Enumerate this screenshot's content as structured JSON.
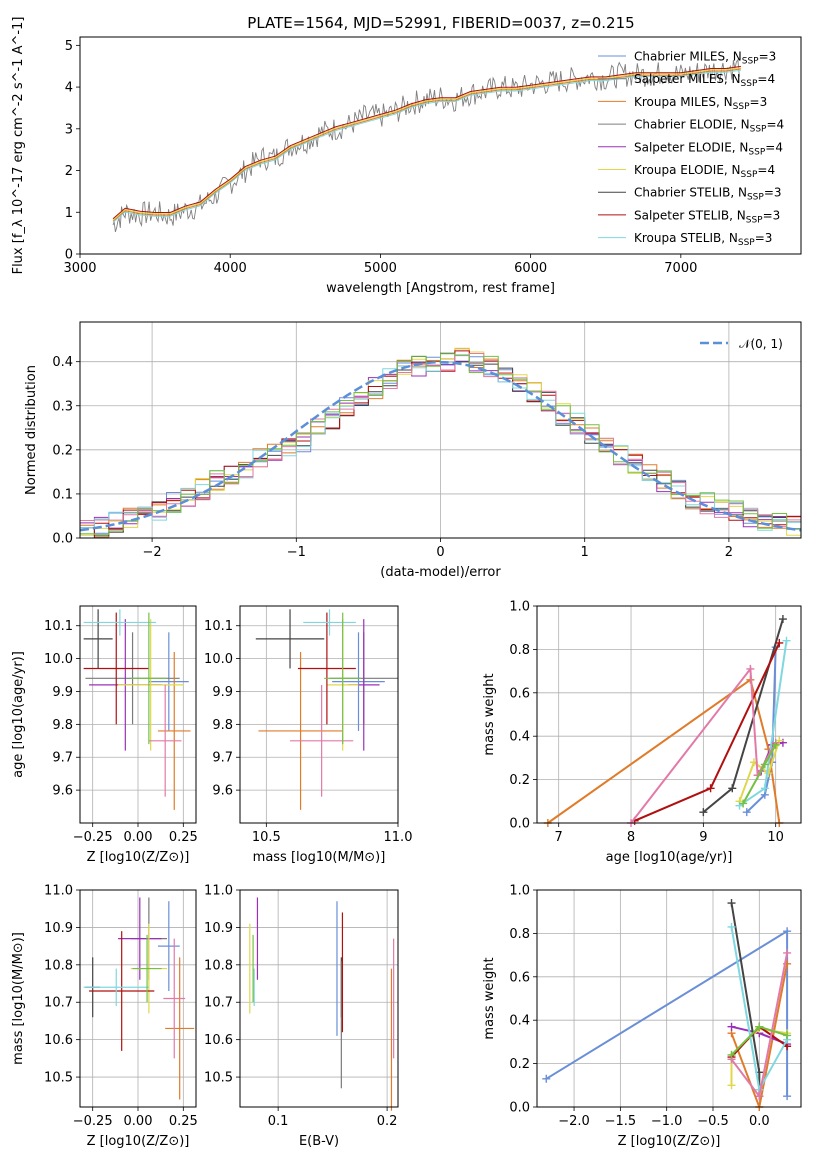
{
  "figure_title": "PLATE=1564, MJD=52991, FIBERID=0037, z=0.215",
  "legend": {
    "entries": [
      {
        "label": "Chabrier MILES, N",
        "sub": "SSP",
        "suffix": "=3",
        "color": "#6a8fd8"
      },
      {
        "label": "Salpeter MILES, N",
        "sub": "SSP",
        "suffix": "=4",
        "color": "#7a7a7a"
      },
      {
        "label": "Kroupa MILES, N",
        "sub": "SSP",
        "suffix": "=3",
        "color": "#e07b2a"
      },
      {
        "label": "Chabrier ELODIE, N",
        "sub": "SSP",
        "suffix": "=4",
        "color": "#7f7f7f"
      },
      {
        "label": "Salpeter ELODIE, N",
        "sub": "SSP",
        "suffix": "=4",
        "color": "#9b30b8"
      },
      {
        "label": "Kroupa ELODIE, N",
        "sub": "SSP",
        "suffix": "=4",
        "color": "#e0d84a"
      },
      {
        "label": "Chabrier STELIB, N",
        "sub": "SSP",
        "suffix": "=3",
        "color": "#444444"
      },
      {
        "label": "Salpeter STELIB, N",
        "sub": "SSP",
        "suffix": "=3",
        "color": "#b01010"
      },
      {
        "label": "Kroupa STELIB, N",
        "sub": "SSP",
        "suffix": "=3",
        "color": "#7fd8e0"
      }
    ],
    "gauss_label": "𝒩(0, 1)"
  },
  "chart_data": [
    {
      "id": "spectrum",
      "type": "line",
      "xlabel": "wavelength [Angstrom, rest frame]",
      "ylabel": "Flux [f_λ 10^-17 erg cm^-2 s^-1 A^-1]",
      "xlim": [
        3000,
        7800
      ],
      "ylim": [
        0,
        5.2
      ],
      "xticks": [
        3000,
        4000,
        5000,
        6000,
        7000
      ],
      "yticks": [
        0,
        1,
        2,
        3,
        4,
        5
      ],
      "data_x": [
        3220,
        3300,
        3400,
        3500,
        3600,
        3700,
        3800,
        3900,
        4000,
        4100,
        4200,
        4300,
        4400,
        4500,
        4600,
        4700,
        4800,
        4900,
        5000,
        5100,
        5200,
        5300,
        5400,
        5500,
        5600,
        5700,
        5800,
        5900,
        6000,
        6100,
        6200,
        6300,
        6400,
        6500,
        6600,
        6700,
        6800,
        6900,
        7000,
        7100,
        7200,
        7300,
        7400
      ],
      "data_y": [
        0.7,
        1.0,
        0.95,
        1.0,
        0.9,
        1.05,
        1.15,
        1.4,
        1.7,
        2.0,
        2.3,
        2.3,
        2.6,
        2.7,
        2.9,
        3.0,
        3.1,
        3.3,
        3.3,
        3.4,
        3.6,
        3.7,
        3.75,
        3.7,
        3.85,
        3.9,
        4.0,
        3.95,
        4.05,
        4.1,
        4.15,
        4.2,
        4.25,
        4.2,
        4.3,
        4.3,
        4.3,
        4.35,
        4.3,
        4.35,
        4.4,
        4.45,
        4.5
      ],
      "model_x": [
        3220,
        3300,
        3400,
        3500,
        3600,
        3700,
        3800,
        3900,
        4000,
        4100,
        4200,
        4300,
        4400,
        4500,
        4600,
        4700,
        4800,
        4900,
        5000,
        5100,
        5200,
        5300,
        5400,
        5500,
        5600,
        5700,
        5800,
        5900,
        6000,
        6100,
        6200,
        6300,
        6400,
        6500,
        6600,
        6700,
        6800,
        6900,
        7000,
        7100,
        7200,
        7300,
        7400
      ],
      "model_y": [
        0.8,
        1.05,
        0.98,
        0.95,
        0.95,
        1.1,
        1.2,
        1.5,
        1.75,
        2.05,
        2.2,
        2.3,
        2.55,
        2.7,
        2.85,
        3.0,
        3.1,
        3.2,
        3.3,
        3.4,
        3.55,
        3.65,
        3.7,
        3.7,
        3.85,
        3.9,
        3.95,
        3.95,
        4.0,
        4.05,
        4.1,
        4.15,
        4.2,
        4.2,
        4.25,
        4.3,
        4.3,
        4.3,
        4.3,
        4.35,
        4.4,
        4.4,
        4.45
      ]
    },
    {
      "id": "residual_hist",
      "type": "step",
      "xlabel": "(data-model)/error",
      "ylabel": "Normed distribution",
      "xlim": [
        -2.5,
        2.5
      ],
      "ylim": [
        0,
        0.49
      ],
      "xticks": [
        -2,
        -1,
        0,
        1,
        2
      ],
      "yticks": [
        0.0,
        0.1,
        0.2,
        0.3,
        0.4
      ],
      "bin_edges": [
        -2.5,
        -2.4,
        -2.3,
        -2.2,
        -2.1,
        -2.0,
        -1.9,
        -1.8,
        -1.7,
        -1.6,
        -1.5,
        -1.4,
        -1.3,
        -1.2,
        -1.1,
        -1.0,
        -0.9,
        -0.8,
        -0.7,
        -0.6,
        -0.5,
        -0.4,
        -0.3,
        -0.2,
        -0.1,
        0.0,
        0.1,
        0.2,
        0.3,
        0.4,
        0.5,
        0.6,
        0.7,
        0.8,
        0.9,
        1.0,
        1.1,
        1.2,
        1.3,
        1.4,
        1.5,
        1.6,
        1.7,
        1.8,
        1.9,
        2.0,
        2.1,
        2.2,
        2.3,
        2.4,
        2.5
      ],
      "counts": [
        0.015,
        0.025,
        0.035,
        0.045,
        0.05,
        0.06,
        0.08,
        0.09,
        0.11,
        0.13,
        0.14,
        0.15,
        0.18,
        0.19,
        0.21,
        0.22,
        0.25,
        0.27,
        0.3,
        0.32,
        0.34,
        0.36,
        0.38,
        0.39,
        0.395,
        0.4,
        0.41,
        0.4,
        0.39,
        0.37,
        0.35,
        0.33,
        0.31,
        0.28,
        0.26,
        0.24,
        0.22,
        0.19,
        0.17,
        0.15,
        0.13,
        0.11,
        0.09,
        0.08,
        0.07,
        0.06,
        0.05,
        0.04,
        0.035,
        0.03
      ],
      "gauss": {
        "mu": 0,
        "sigma": 1
      }
    },
    {
      "id": "age_vs_Z",
      "type": "errorbar",
      "xlabel": "Z [log10(Z/Z⊙)]",
      "ylabel": "age [log10(age/yr)]",
      "xlim": [
        -0.32,
        0.32
      ],
      "ylim": [
        9.5,
        10.16
      ],
      "xticks": [
        -0.25,
        0.0,
        0.25
      ],
      "xticklabels": [
        "−0.25",
        "0.00",
        "0.25"
      ],
      "yticks": [
        9.6,
        9.7,
        9.8,
        9.9,
        10.0,
        10.1
      ],
      "points": [
        {
          "x": 0.17,
          "y": 9.93,
          "xerr": 0.11,
          "yerr": 0.15,
          "color": "#6a8fd8"
        },
        {
          "x": -0.03,
          "y": 9.94,
          "xerr": 0.26,
          "yerr": 0.14,
          "color": "#7a7a7a"
        },
        {
          "x": 0.2,
          "y": 9.78,
          "xerr": 0.09,
          "yerr": 0.24,
          "color": "#e07b2a"
        },
        {
          "x": -0.07,
          "y": 9.92,
          "xerr": 0.2,
          "yerr": 0.2,
          "color": "#9b30b8"
        },
        {
          "x": 0.07,
          "y": 9.92,
          "xerr": 0.18,
          "yerr": 0.2,
          "color": "#e0d84a"
        },
        {
          "x": -0.22,
          "y": 10.06,
          "xerr": 0.08,
          "yerr": 0.09,
          "color": "#444444"
        },
        {
          "x": -0.12,
          "y": 9.97,
          "xerr": 0.18,
          "yerr": 0.17,
          "color": "#b01010"
        },
        {
          "x": -0.1,
          "y": 10.11,
          "xerr": 0.2,
          "yerr": 0.04,
          "color": "#7fd8e0"
        },
        {
          "x": 0.15,
          "y": 9.75,
          "xerr": 0.09,
          "yerr": 0.17,
          "color": "#e27aa8"
        },
        {
          "x": 0.06,
          "y": 9.94,
          "xerr": 0.1,
          "yerr": 0.2,
          "color": "#74c043"
        }
      ]
    },
    {
      "id": "age_vs_mass",
      "type": "errorbar",
      "xlabel": "mass [log10(M/M⊙)]",
      "ylabel": "",
      "xlim": [
        10.4,
        11.0
      ],
      "ylim": [
        9.5,
        10.16
      ],
      "xticks": [
        10.5,
        11.0
      ],
      "xticklabels": [
        "10.5",
        "11.0"
      ],
      "yticks": [
        9.6,
        9.7,
        9.8,
        9.9,
        10.0,
        10.1
      ],
      "points": [
        {
          "x": 10.85,
          "y": 9.93,
          "xerr": 0.1,
          "yerr": 0.15,
          "color": "#6a8fd8"
        },
        {
          "x": 10.87,
          "y": 9.94,
          "xerr": 0.13,
          "yerr": 0.14,
          "color": "#7a7a7a"
        },
        {
          "x": 10.63,
          "y": 9.78,
          "xerr": 0.16,
          "yerr": 0.24,
          "color": "#e07b2a"
        },
        {
          "x": 10.87,
          "y": 9.92,
          "xerr": 0.06,
          "yerr": 0.2,
          "color": "#9b30b8"
        },
        {
          "x": 10.79,
          "y": 9.92,
          "xerr": 0.06,
          "yerr": 0.2,
          "color": "#e0d84a"
        },
        {
          "x": 10.59,
          "y": 10.06,
          "xerr": 0.13,
          "yerr": 0.09,
          "color": "#444444"
        },
        {
          "x": 10.73,
          "y": 9.97,
          "xerr": 0.11,
          "yerr": 0.17,
          "color": "#b01010"
        },
        {
          "x": 10.74,
          "y": 10.11,
          "xerr": 0.1,
          "yerr": 0.04,
          "color": "#7fd8e0"
        },
        {
          "x": 10.71,
          "y": 9.75,
          "xerr": 0.12,
          "yerr": 0.17,
          "color": "#e27aa8"
        },
        {
          "x": 10.79,
          "y": 9.94,
          "xerr": 0.07,
          "yerr": 0.2,
          "color": "#74c043"
        }
      ]
    },
    {
      "id": "weight_vs_age",
      "type": "line",
      "xlabel": "age [log10(age/yr)]",
      "ylabel": "mass weight",
      "xlim": [
        6.7,
        10.35
      ],
      "ylim": [
        0,
        1.0
      ],
      "xticks": [
        7,
        8,
        9,
        10
      ],
      "yticks": [
        0.0,
        0.2,
        0.4,
        0.6,
        0.8,
        1.0
      ],
      "series": [
        {
          "color": "#6a8fd8",
          "x": [
            9.6,
            9.85,
            9.95,
            10.0
          ],
          "y": [
            0.05,
            0.13,
            0.28,
            0.81
          ]
        },
        {
          "color": "#e07b2a",
          "x": [
            6.85,
            9.65,
            9.9,
            10.05
          ],
          "y": [
            0.0,
            0.66,
            0.34,
            0.0
          ]
        },
        {
          "color": "#9b30b8",
          "x": [
            9.8,
            9.95,
            10.1
          ],
          "y": [
            0.24,
            0.36,
            0.37
          ]
        },
        {
          "color": "#e0d84a",
          "x": [
            9.5,
            9.7,
            9.9,
            10.05
          ],
          "y": [
            0.1,
            0.28,
            0.23,
            0.38
          ]
        },
        {
          "color": "#444444",
          "x": [
            9.0,
            9.4,
            10.1
          ],
          "y": [
            0.05,
            0.16,
            0.94
          ]
        },
        {
          "color": "#b01010",
          "x": [
            8.05,
            9.1,
            10.05
          ],
          "y": [
            0.01,
            0.16,
            0.83
          ]
        },
        {
          "color": "#7fd8e0",
          "x": [
            9.5,
            9.85,
            10.15
          ],
          "y": [
            0.08,
            0.16,
            0.84
          ]
        },
        {
          "color": "#e27aa8",
          "x": [
            8.0,
            9.65,
            9.75,
            10.0
          ],
          "y": [
            0.0,
            0.71,
            0.22,
            0.37
          ]
        },
        {
          "color": "#74c043",
          "x": [
            9.55,
            9.85,
            10.0
          ],
          "y": [
            0.09,
            0.27,
            0.36
          ]
        }
      ]
    },
    {
      "id": "mass_vs_Z",
      "type": "errorbar",
      "xlabel": "Z [log10(Z/Z⊙)]",
      "ylabel": "mass [log10(M/M⊙)]",
      "xlim": [
        -0.32,
        0.32
      ],
      "ylim": [
        10.42,
        11.0
      ],
      "xticks": [
        -0.25,
        0.0,
        0.25
      ],
      "xticklabels": [
        "−0.25",
        "0.00",
        "0.25"
      ],
      "yticks": [
        10.5,
        10.6,
        10.7,
        10.8,
        10.9,
        11.0
      ],
      "points": [
        {
          "x": 0.17,
          "y": 10.85,
          "xerr": 0.06,
          "yerr": 0.12,
          "color": "#6a8fd8"
        },
        {
          "x": 0.06,
          "y": 10.87,
          "xerr": 0.1,
          "yerr": 0.11,
          "color": "#7a7a7a"
        },
        {
          "x": 0.23,
          "y": 10.63,
          "xerr": 0.08,
          "yerr": 0.19,
          "color": "#e07b2a"
        },
        {
          "x": 0.01,
          "y": 10.87,
          "xerr": 0.12,
          "yerr": 0.11,
          "color": "#9b30b8"
        },
        {
          "x": 0.06,
          "y": 10.79,
          "xerr": 0.1,
          "yerr": 0.12,
          "color": "#e0d84a"
        },
        {
          "x": -0.25,
          "y": 10.74,
          "xerr": 0.04,
          "yerr": 0.08,
          "color": "#444444"
        },
        {
          "x": -0.09,
          "y": 10.73,
          "xerr": 0.18,
          "yerr": 0.16,
          "color": "#b01010"
        },
        {
          "x": -0.12,
          "y": 10.74,
          "xerr": 0.18,
          "yerr": 0.05,
          "color": "#7fd8e0"
        },
        {
          "x": 0.2,
          "y": 10.71,
          "xerr": 0.06,
          "yerr": 0.16,
          "color": "#e27aa8"
        },
        {
          "x": 0.05,
          "y": 10.79,
          "xerr": 0.08,
          "yerr": 0.09,
          "color": "#74c043"
        }
      ]
    },
    {
      "id": "mass_vs_ebv",
      "type": "errorbar",
      "xlabel": "E(B-V)",
      "ylabel": "",
      "xlim": [
        0.065,
        0.21
      ],
      "ylim": [
        10.42,
        11.0
      ],
      "xticks": [
        0.1,
        0.2
      ],
      "xticklabels": [
        "0.1",
        "0.2"
      ],
      "yticks": [
        10.5,
        10.6,
        10.7,
        10.8,
        10.9,
        11.0
      ],
      "points": [
        {
          "x": 0.154,
          "y": 10.79,
          "xerr": 0.0,
          "yerr": 0.18,
          "color": "#6a8fd8"
        },
        {
          "x": 0.158,
          "y": 10.74,
          "xerr": 0.0,
          "yerr": 0.08,
          "color": "#444444"
        },
        {
          "x": 0.204,
          "y": 10.6,
          "xerr": 0.0,
          "yerr": 0.19,
          "color": "#e07b2a"
        },
        {
          "x": 0.081,
          "y": 10.87,
          "xerr": 0.0,
          "yerr": 0.11,
          "color": "#9b30b8"
        },
        {
          "x": 0.074,
          "y": 10.79,
          "xerr": 0.0,
          "yerr": 0.12,
          "color": "#e0d84a"
        },
        {
          "x": 0.158,
          "y": 10.64,
          "xerr": 0.0,
          "yerr": 0.17,
          "color": "#7a7a7a"
        },
        {
          "x": 0.159,
          "y": 10.78,
          "xerr": 0.0,
          "yerr": 0.16,
          "color": "#b01010"
        },
        {
          "x": 0.078,
          "y": 10.74,
          "xerr": 0.0,
          "yerr": 0.05,
          "color": "#7fd8e0"
        },
        {
          "x": 0.206,
          "y": 10.71,
          "xerr": 0.0,
          "yerr": 0.16,
          "color": "#e27aa8"
        },
        {
          "x": 0.077,
          "y": 10.79,
          "xerr": 0.0,
          "yerr": 0.09,
          "color": "#74c043"
        }
      ]
    },
    {
      "id": "weight_vs_Z",
      "type": "line",
      "xlabel": "Z [log10(Z/Z⊙)]",
      "ylabel": "mass weight",
      "xlim": [
        -2.4,
        0.45
      ],
      "ylim": [
        0,
        1.0
      ],
      "xticks": [
        -2.0,
        -1.5,
        -1.0,
        -0.5,
        0.0
      ],
      "xticklabels": [
        "−2.0",
        "−1.5",
        "−1.0",
        "−0.5",
        "0.0"
      ],
      "yticks": [
        0.0,
        0.2,
        0.4,
        0.6,
        0.8,
        1.0
      ],
      "series": [
        {
          "color": "#6a8fd8",
          "x": [
            -2.3,
            0.3,
            0.3
          ],
          "y": [
            0.13,
            0.81,
            0.05
          ]
        },
        {
          "color": "#e07b2a",
          "x": [
            -0.3,
            0.0,
            0.3
          ],
          "y": [
            0.34,
            0.0,
            0.66
          ]
        },
        {
          "color": "#9b30b8",
          "x": [
            -0.3,
            0.0,
            0.3
          ],
          "y": [
            0.37,
            0.34,
            0.29
          ]
        },
        {
          "color": "#e0d84a",
          "x": [
            -0.3,
            -0.3,
            0.0,
            0.3
          ],
          "y": [
            0.1,
            0.24,
            0.36,
            0.34
          ]
        },
        {
          "color": "#444444",
          "x": [
            -0.3,
            0.0,
            0.0
          ],
          "y": [
            0.94,
            0.16,
            0.05
          ]
        },
        {
          "color": "#b01010",
          "x": [
            -0.3,
            0.0,
            0.3
          ],
          "y": [
            0.23,
            0.37,
            0.28
          ]
        },
        {
          "color": "#7fd8e0",
          "x": [
            -0.3,
            0.0,
            0.3
          ],
          "y": [
            0.83,
            0.08,
            0.31
          ]
        },
        {
          "color": "#e27aa8",
          "x": [
            -0.3,
            0.0,
            0.3
          ],
          "y": [
            0.22,
            0.05,
            0.71
          ]
        },
        {
          "color": "#74c043",
          "x": [
            -0.3,
            0.0,
            0.3
          ],
          "y": [
            0.24,
            0.37,
            0.33
          ]
        }
      ]
    }
  ]
}
